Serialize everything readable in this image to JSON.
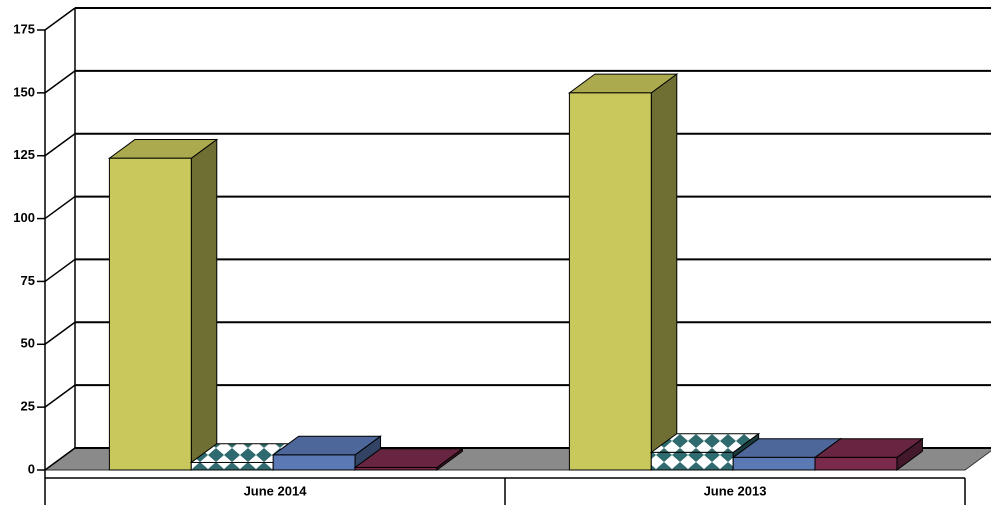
{
  "chart_data": {
    "type": "bar3d",
    "categories": [
      "June 2014",
      "June 2013"
    ],
    "series": [
      {
        "color": "#c9c85c",
        "values": [
          124,
          150
        ]
      },
      {
        "color": "#2f6b6e",
        "fill_pattern": "diamonds",
        "values": [
          3,
          7
        ]
      },
      {
        "color": "#5b79b5",
        "values": [
          6,
          5
        ]
      },
      {
        "color": "#7a2b4c",
        "values": [
          1,
          5
        ]
      }
    ],
    "ylim": [
      0,
      175
    ],
    "yticks": [
      0,
      25,
      50,
      75,
      100,
      125,
      150,
      175
    ],
    "grid": true
  }
}
